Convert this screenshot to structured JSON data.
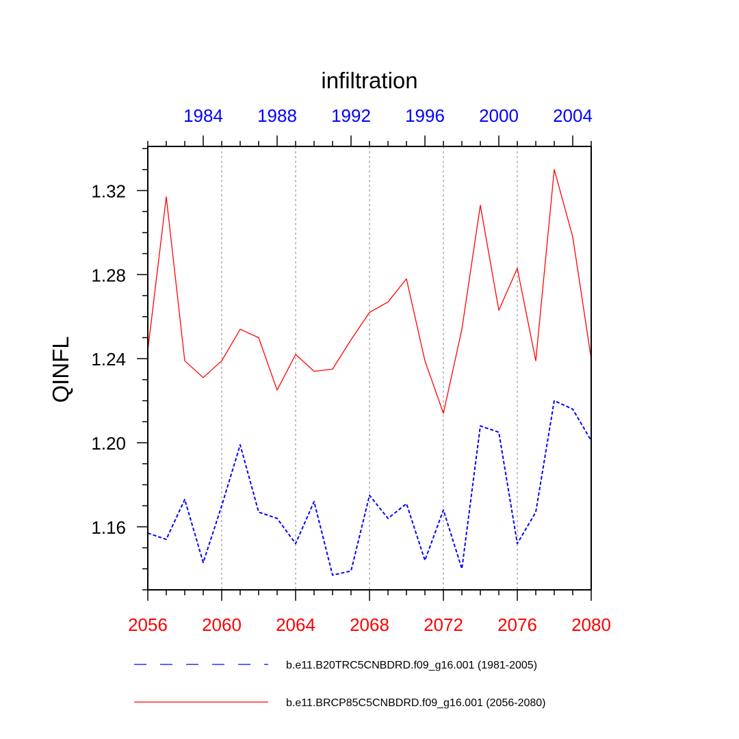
{
  "chart_data": {
    "type": "line",
    "title": "infiltration",
    "ylabel": "QINFL",
    "xlabel": "",
    "ylim": [
      1.13,
      1.341
    ],
    "xlim": [
      2056,
      2080
    ],
    "x_top_lim": [
      1981,
      2005
    ],
    "y_ticks": [
      1.16,
      1.2,
      1.24,
      1.28,
      1.32
    ],
    "y_tick_labels": [
      "1.16",
      "1.20",
      "1.24",
      "1.28",
      "1.32"
    ],
    "x_ticks": [
      2056,
      2060,
      2064,
      2068,
      2072,
      2076,
      2080
    ],
    "x_tick_labels": [
      "2056",
      "2060",
      "2064",
      "2068",
      "2072",
      "2076",
      "2080"
    ],
    "x_top_ticks": [
      1984,
      1988,
      1992,
      1996,
      2000,
      2004
    ],
    "x_top_tick_labels": [
      "1984",
      "1988",
      "1992",
      "1996",
      "2000",
      "2004"
    ],
    "grid": "vertical dotted at major x ticks",
    "legend_position": "bottom",
    "colors": {
      "historical": "#0000ff",
      "future": "#ff0000",
      "grid": "#aaaaaa",
      "axis": "#000000"
    },
    "series": [
      {
        "name": "b.e11.B20TRC5CNBDRD.f09_g16.001 (1981-2005)",
        "style": "dashed",
        "axis": "top",
        "x": [
          1981,
          1982,
          1983,
          1984,
          1985,
          1986,
          1987,
          1988,
          1989,
          1990,
          1991,
          1992,
          1993,
          1994,
          1995,
          1996,
          1997,
          1998,
          1999,
          2000,
          2001,
          2002,
          2003,
          2004,
          2005
        ],
        "values": [
          1.157,
          1.154,
          1.173,
          1.143,
          1.17,
          1.199,
          1.167,
          1.164,
          1.152,
          1.172,
          1.137,
          1.139,
          1.175,
          1.164,
          1.171,
          1.144,
          1.168,
          1.14,
          1.208,
          1.205,
          1.152,
          1.167,
          1.22,
          1.216,
          1.201
        ]
      },
      {
        "name": "b.e11.BRCP85C5CNBDRD.f09_g16.001 (2056-2080)",
        "style": "solid",
        "axis": "bottom",
        "x": [
          2056,
          2057,
          2058,
          2059,
          2060,
          2061,
          2062,
          2063,
          2064,
          2065,
          2066,
          2067,
          2068,
          2069,
          2070,
          2071,
          2072,
          2073,
          2074,
          2075,
          2076,
          2077,
          2078,
          2079,
          2080
        ],
        "values": [
          1.244,
          1.317,
          1.239,
          1.231,
          1.239,
          1.254,
          1.25,
          1.225,
          1.242,
          1.234,
          1.235,
          1.249,
          1.262,
          1.267,
          1.278,
          1.239,
          1.214,
          1.254,
          1.313,
          1.263,
          1.283,
          1.239,
          1.33,
          1.298,
          1.24
        ]
      }
    ]
  }
}
